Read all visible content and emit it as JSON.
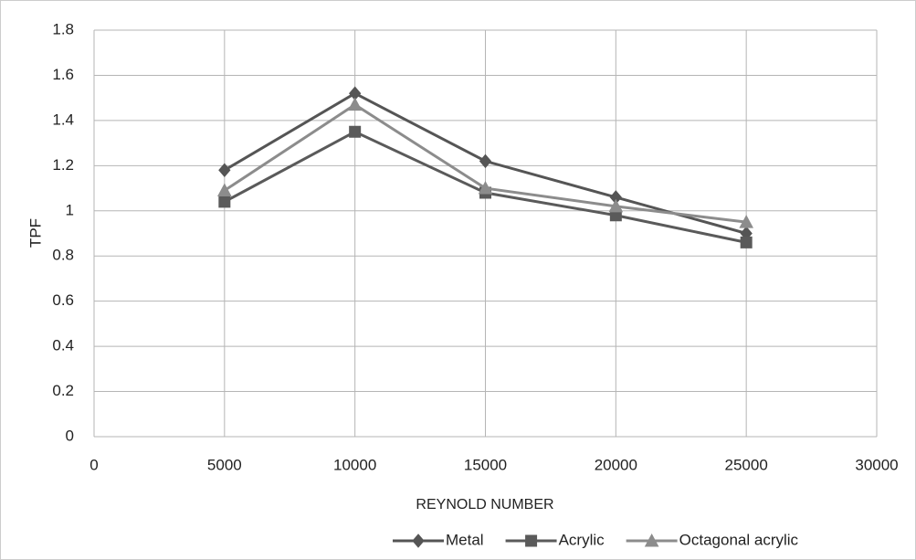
{
  "chart_data": {
    "type": "line",
    "x_label": "REYNOLD NUMBER",
    "y_label": "TPF",
    "x": [
      5000,
      10000,
      15000,
      20000,
      25000
    ],
    "series": [
      {
        "name": "Metal",
        "color": "#555555",
        "marker": "diamond",
        "values": [
          1.18,
          1.52,
          1.22,
          1.06,
          0.9
        ]
      },
      {
        "name": "Acrylic",
        "color": "#5a5a5a",
        "marker": "square",
        "values": [
          1.04,
          1.35,
          1.08,
          0.98,
          0.86
        ]
      },
      {
        "name": "Octagonal acrylic",
        "color": "#8c8c8c",
        "marker": "triangle",
        "values": [
          1.09,
          1.47,
          1.1,
          1.02,
          0.95
        ]
      }
    ],
    "xlim": [
      0,
      30000
    ],
    "xticks": [
      0,
      5000,
      10000,
      15000,
      20000,
      25000,
      30000
    ],
    "ylim": [
      0,
      1.8
    ],
    "yticks": [
      0,
      0.2,
      0.4,
      0.6,
      0.8,
      1,
      1.2,
      1.4,
      1.6,
      1.8
    ],
    "grid": true,
    "legend": "bottom"
  }
}
